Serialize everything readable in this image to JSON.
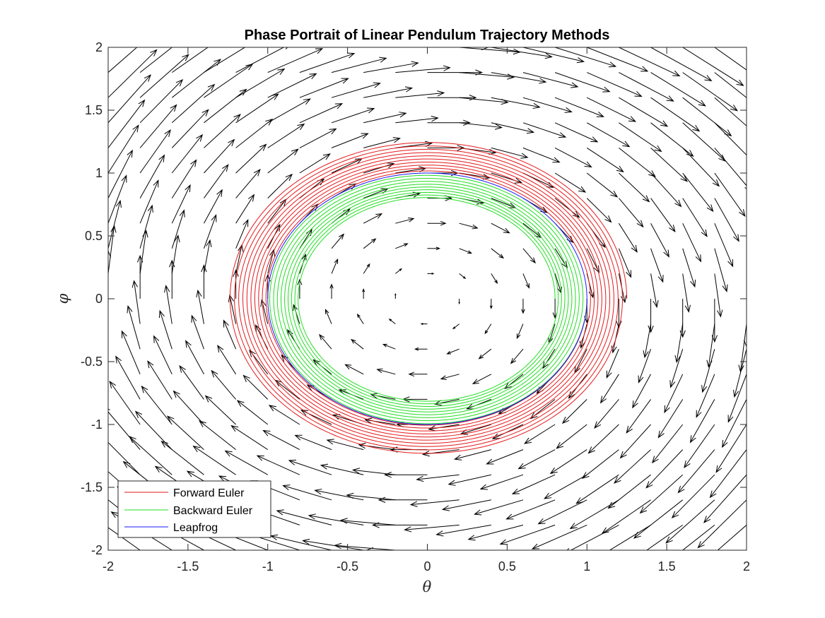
{
  "chart_data": {
    "type": "line",
    "title": "Phase Portrait of Linear Pendulum Trajectory Methods",
    "xlabel": "θ",
    "ylabel": "φ",
    "xlim": [
      -2,
      2
    ],
    "ylim": [
      -2,
      2
    ],
    "xticks": [
      -2,
      -1.5,
      -1,
      -0.5,
      0,
      0.5,
      1,
      1.5,
      2
    ],
    "yticks": [
      -2,
      -1.5,
      -1,
      -0.5,
      0,
      0.5,
      1,
      1.5,
      2
    ],
    "xtick_labels": [
      "-2",
      "-1.5",
      "-1",
      "-0.5",
      "0",
      "0.5",
      "1",
      "1.5",
      "2"
    ],
    "ytick_labels": [
      "-2",
      "-1.5",
      "-1",
      "-0.5",
      "0",
      "0.5",
      "1",
      "1.5",
      "2"
    ],
    "grid": false,
    "legend_position": "bottom-left",
    "vector_field": {
      "description_free": true,
      "x_range": [
        -2,
        2
      ],
      "y_range": [
        -2,
        2
      ],
      "step": 0.2,
      "u": "phi",
      "v": "-theta",
      "color": "#000000"
    },
    "series": [
      {
        "name": "Forward Euler",
        "color": "#e31a1c",
        "kind": "outward_spiral",
        "start": [
          1.0,
          0.0
        ],
        "end_radius": 1.25,
        "loops": 10
      },
      {
        "name": "Backward Euler",
        "color": "#22dd22",
        "kind": "inward_spiral",
        "start": [
          1.0,
          0.0
        ],
        "end_radius": 0.8,
        "loops": 9
      },
      {
        "name": "Leapfrog",
        "color": "#1a1aff",
        "kind": "circle",
        "start": [
          1.0,
          0.0
        ],
        "radius": 1.0
      }
    ]
  }
}
